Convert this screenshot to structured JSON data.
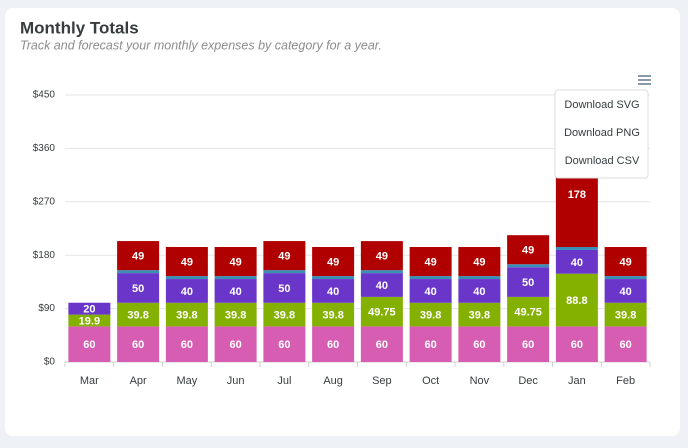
{
  "chart_data": {
    "type": "stacked-bar",
    "title": "Monthly Totals",
    "subtitle": "Track and forecast your monthly expenses by category for a year.",
    "categories": [
      "Mar",
      "Apr",
      "May",
      "Jun",
      "Jul",
      "Aug",
      "Sep",
      "Oct",
      "Nov",
      "Dec",
      "Jan",
      "Feb"
    ],
    "series": [
      {
        "color": "#d65db1",
        "show_labels": true,
        "values": [
          60,
          60,
          60,
          60,
          60,
          60,
          60,
          60,
          60,
          60,
          60,
          60
        ]
      },
      {
        "color": "#84b000",
        "show_labels": true,
        "values": [
          19.9,
          39.8,
          39.8,
          39.8,
          39.8,
          39.8,
          49.75,
          39.8,
          39.8,
          49.75,
          88.8,
          39.8
        ]
      },
      {
        "color": "#6a35c9",
        "show_labels": true,
        "values": [
          20,
          50,
          40,
          40,
          50,
          40,
          40,
          40,
          40,
          50,
          40,
          40
        ]
      },
      {
        "color": "#3a8fb7",
        "show_labels": false,
        "values": [
          null,
          5,
          5,
          5,
          5,
          5,
          5,
          5,
          5,
          5,
          5,
          5
        ]
      },
      {
        "color": "#b00000",
        "show_labels": true,
        "values": [
          null,
          49,
          49,
          49,
          49,
          49,
          49,
          49,
          49,
          49,
          178,
          49
        ]
      }
    ],
    "ylim": [
      0,
      450
    ],
    "yticks": [
      {
        "value": 0,
        "label": "$0"
      },
      {
        "value": 90,
        "label": "$90"
      },
      {
        "value": 180,
        "label": "$180"
      },
      {
        "value": 270,
        "label": "$270"
      },
      {
        "value": 360,
        "label": "$360"
      },
      {
        "value": 450,
        "label": "$450"
      }
    ],
    "grid": true
  },
  "menu": {
    "items": [
      "Download SVG",
      "Download PNG",
      "Download CSV"
    ]
  }
}
